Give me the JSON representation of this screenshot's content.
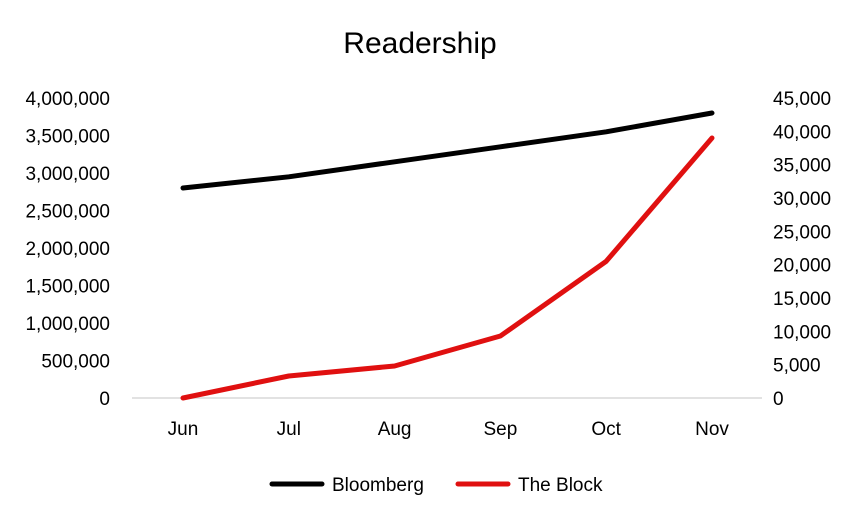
{
  "chart_data": {
    "type": "line",
    "title": "Readership",
    "categories": [
      "Jun",
      "Jul",
      "Aug",
      "Sep",
      "Oct",
      "Nov"
    ],
    "series": [
      {
        "name": "Bloomberg",
        "axis": "left",
        "color": "#000000",
        "values": [
          2800000,
          2950000,
          3150000,
          3350000,
          3550000,
          3800000
        ]
      },
      {
        "name": "The Block",
        "axis": "right",
        "color": "#e01010",
        "values": [
          0,
          3300,
          4800,
          9300,
          20500,
          39000
        ]
      }
    ],
    "y_left": {
      "ylim": [
        0,
        4000000
      ],
      "ticks": [
        {
          "v": 0,
          "label": "0"
        },
        {
          "v": 500000,
          "label": "500,000"
        },
        {
          "v": 1000000,
          "label": "1,000,000"
        },
        {
          "v": 1500000,
          "label": "1,500,000"
        },
        {
          "v": 2000000,
          "label": "2,000,000"
        },
        {
          "v": 2500000,
          "label": "2,500,000"
        },
        {
          "v": 3000000,
          "label": "3,000,000"
        },
        {
          "v": 3500000,
          "label": "3,500,000"
        },
        {
          "v": 4000000,
          "label": "4,000,000"
        }
      ]
    },
    "y_right": {
      "ylim": [
        0,
        45000
      ],
      "ticks": [
        {
          "v": 0,
          "label": "0"
        },
        {
          "v": 5000,
          "label": "5,000"
        },
        {
          "v": 10000,
          "label": "10,000"
        },
        {
          "v": 15000,
          "label": "15,000"
        },
        {
          "v": 20000,
          "label": "20,000"
        },
        {
          "v": 25000,
          "label": "25,000"
        },
        {
          "v": 30000,
          "label": "30,000"
        },
        {
          "v": 35000,
          "label": "35,000"
        },
        {
          "v": 40000,
          "label": "40,000"
        },
        {
          "v": 45000,
          "label": "45,000"
        }
      ]
    },
    "grid": false,
    "legend": "bottom"
  }
}
